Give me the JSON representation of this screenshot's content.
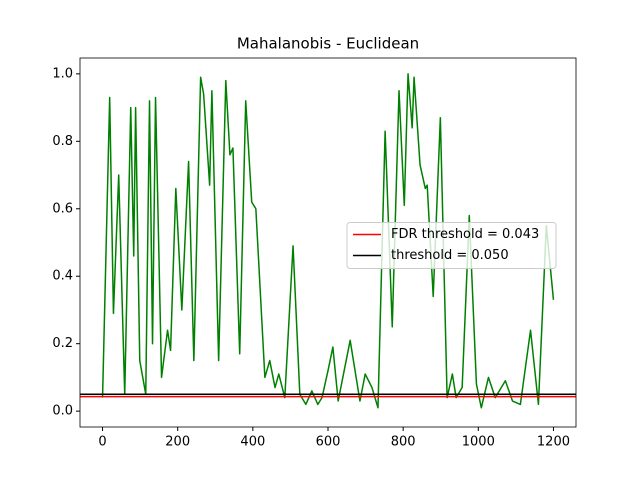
{
  "chart_data": {
    "type": "line",
    "title": "Mahalanobis - Euclidean",
    "x": [
      0,
      19,
      29,
      43,
      59,
      75,
      83,
      88,
      99,
      115,
      125,
      133,
      141,
      157,
      173,
      181,
      195,
      211,
      229,
      243,
      261,
      269,
      285,
      291,
      309,
      328,
      339,
      347,
      365,
      381,
      397,
      408,
      432,
      445,
      459,
      469,
      485,
      507,
      525,
      541,
      557,
      573,
      584,
      600,
      613,
      627,
      659,
      685,
      699,
      717,
      733,
      752,
      771,
      789,
      803,
      813,
      824,
      829,
      845,
      859,
      864,
      880,
      899,
      917,
      931,
      941,
      957,
      976,
      995,
      1008,
      1027,
      1045,
      1072,
      1091,
      1112,
      1139,
      1160,
      1181,
      1200
    ],
    "series": [
      {
        "name": "Mahalanobis - Euclidean",
        "color": "#008000",
        "values": [
          0.04,
          0.93,
          0.29,
          0.7,
          0.05,
          0.9,
          0.46,
          0.9,
          0.15,
          0.05,
          0.92,
          0.2,
          0.93,
          0.1,
          0.24,
          0.18,
          0.66,
          0.3,
          0.74,
          0.15,
          0.99,
          0.94,
          0.67,
          0.95,
          0.15,
          0.98,
          0.76,
          0.78,
          0.17,
          0.92,
          0.62,
          0.6,
          0.1,
          0.15,
          0.07,
          0.11,
          0.04,
          0.49,
          0.05,
          0.02,
          0.06,
          0.02,
          0.04,
          0.12,
          0.19,
          0.03,
          0.21,
          0.03,
          0.11,
          0.07,
          0.01,
          0.83,
          0.25,
          0.95,
          0.61,
          1.0,
          0.84,
          0.99,
          0.73,
          0.66,
          0.67,
          0.34,
          0.87,
          0.04,
          0.11,
          0.04,
          0.07,
          0.58,
          0.08,
          0.01,
          0.1,
          0.04,
          0.09,
          0.03,
          0.02,
          0.24,
          0.02,
          0.55,
          0.33
        ]
      }
    ],
    "hlines": [
      {
        "name": "FDR threshold = 0.043",
        "color": "#ff0000",
        "value": 0.043
      },
      {
        "name": "threshold = 0.050",
        "color": "#000000",
        "value": 0.05
      }
    ],
    "xlim": [
      -60,
      1260
    ],
    "ylim": [
      -0.047,
      1.047
    ],
    "xticks": [
      0,
      200,
      400,
      600,
      800,
      1000,
      1200
    ],
    "yticks": [
      {
        "value": 0,
        "label": "0.0"
      },
      0.2,
      0.4,
      0.6,
      0.8,
      {
        "value": 1,
        "label": "1.0"
      }
    ],
    "legend": "center right",
    "grid": false
  }
}
